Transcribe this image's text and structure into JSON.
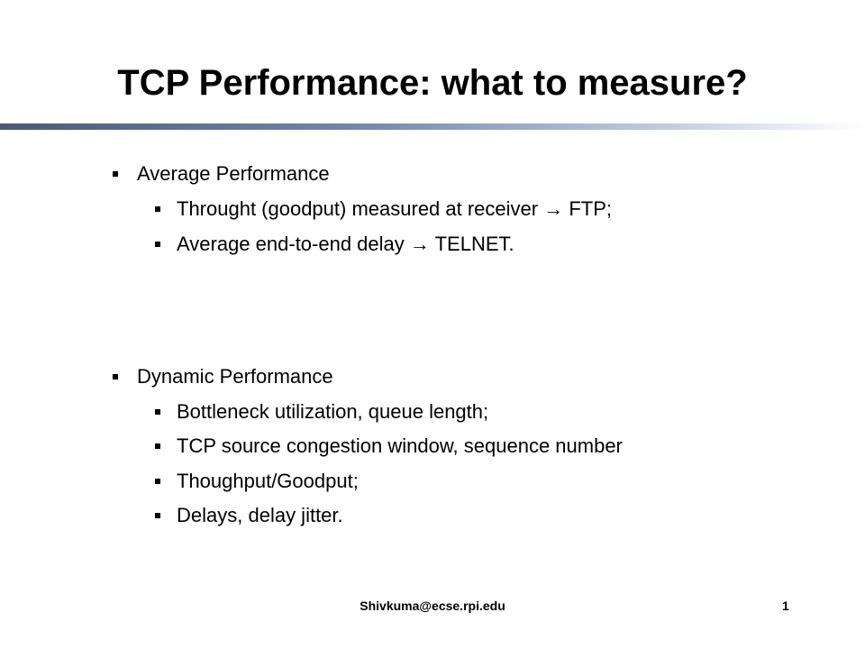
{
  "header": {
    "title": "TCP Performance: what to measure?"
  },
  "sections": [
    {
      "heading": "Average Performance",
      "items": [
        "Throught (goodput) measured at receiver  → FTP;",
        "Average end-to-end delay  → TELNET."
      ]
    },
    {
      "heading": "Dynamic Performance",
      "items": [
        "Bottleneck utilization, queue length;",
        "TCP source congestion window, sequence number",
        "Thoughput/Goodput;",
        "Delays, delay jitter."
      ]
    }
  ],
  "footer": {
    "email": "Shivkuma@ecse.rpi.edu",
    "page": "1"
  }
}
